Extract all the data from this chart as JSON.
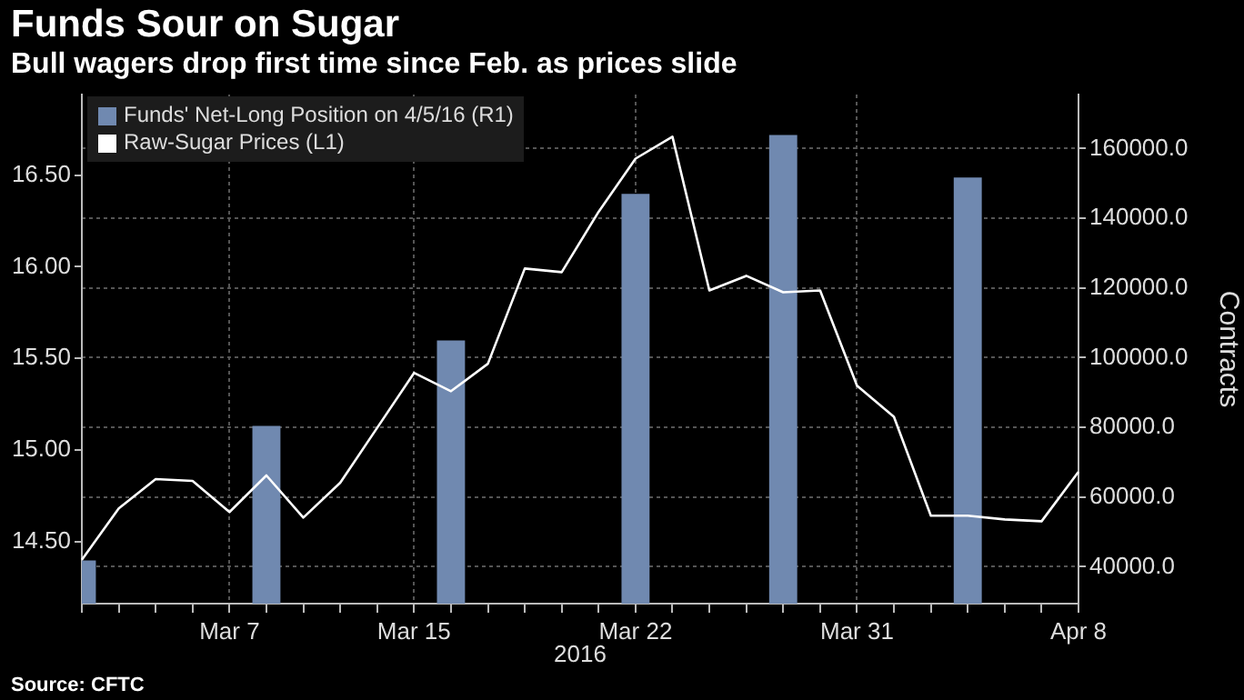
{
  "chart_data": {
    "type": "bar",
    "title": "Funds Sour on Sugar",
    "subtitle": "Bull wagers drop first time since Feb. as prices slide",
    "xlabel": "2016",
    "y2label": "Contracts",
    "annotations": [
      "Source: CFTC"
    ],
    "categories": [
      null,
      null,
      null,
      null,
      "Mar 7",
      null,
      null,
      null,
      null,
      "Mar 15",
      null,
      null,
      null,
      null,
      null,
      "Mar 22",
      null,
      null,
      null,
      null,
      null,
      "Mar 31",
      null,
      null,
      null,
      null,
      null,
      "Apr 8"
    ],
    "series": [
      {
        "name": "Funds' Net-Long Position on 4/5/16 (R1)",
        "axis": "y2",
        "color": "#7089b0",
        "values": [
          41800,
          null,
          null,
          null,
          null,
          80400,
          null,
          null,
          null,
          null,
          104900,
          null,
          null,
          null,
          null,
          147000,
          null,
          null,
          null,
          163900,
          null,
          null,
          null,
          null,
          151700,
          null,
          null,
          null
        ]
      },
      {
        "name": "Raw-Sugar Prices (L1)",
        "type": "line",
        "color": "#ffffff",
        "values": [
          14.4,
          14.68,
          14.84,
          14.83,
          14.66,
          14.86,
          14.63,
          14.82,
          15.12,
          15.42,
          15.32,
          15.47,
          15.99,
          15.97,
          16.3,
          16.59,
          16.71,
          15.87,
          15.95,
          15.86,
          15.87,
          15.35,
          15.18,
          14.64,
          14.64,
          14.62,
          14.61,
          14.88
        ]
      }
    ],
    "ylim": [
      14.16,
      16.94
    ],
    "yticks": [
      {
        "value": 14.5,
        "label": "14.50"
      },
      {
        "value": 15,
        "label": "15.00"
      },
      {
        "value": 15.5,
        "label": "15.50"
      },
      {
        "value": 16,
        "label": "16.00"
      },
      {
        "value": 16.5,
        "label": "16.50"
      }
    ],
    "y2lim": [
      29400,
      175500
    ],
    "y2ticks": [
      {
        "value": 40000,
        "label": "40000.0"
      },
      {
        "value": 60000,
        "label": "60000.0"
      },
      {
        "value": 80000,
        "label": "80000.0"
      },
      {
        "value": 100000,
        "label": "100000.0"
      },
      {
        "value": 120000,
        "label": "120000.0"
      },
      {
        "value": 140000,
        "label": "140000.0"
      },
      {
        "value": 160000,
        "label": "160000.0"
      }
    ],
    "grid": true,
    "legend": "top left",
    "marker": "none",
    "line_style": "solid"
  }
}
